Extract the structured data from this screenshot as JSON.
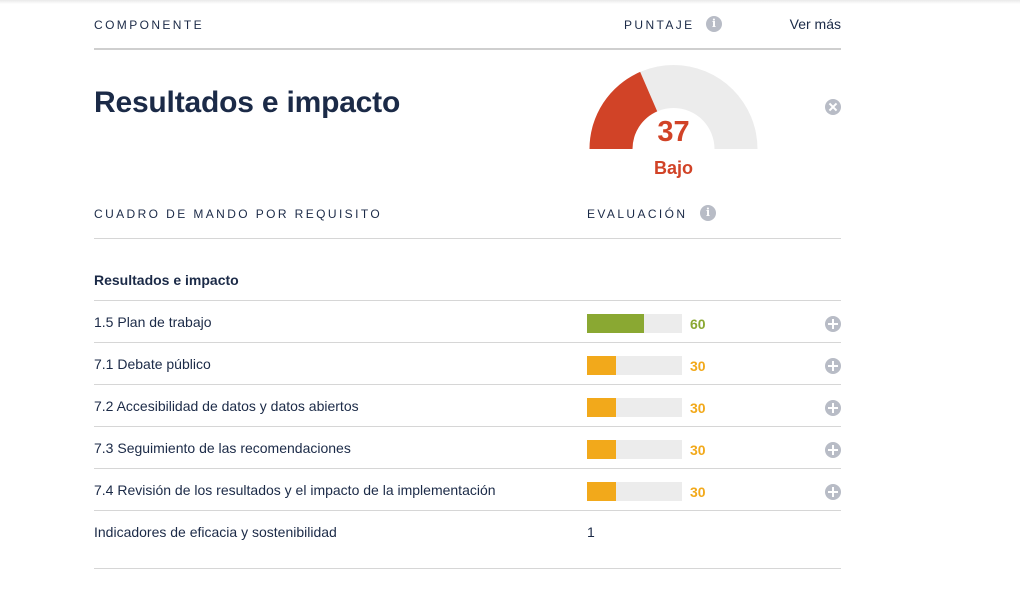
{
  "header": {
    "component_label": "COMPONENTE",
    "score_label": "PUNTAJE",
    "score_info_icon": "info-icon",
    "more_link": "Ver más"
  },
  "component": {
    "title": "Resultados e impacto",
    "score": "37",
    "score_value": 37,
    "score_max": 100,
    "rating": "Bajo",
    "accent_color": "#d14327",
    "close_icon": "close-icon"
  },
  "scorecard": {
    "label": "CUADRO DE MANDO POR REQUISITO",
    "evaluation_label": "EVALUACIÓN",
    "group_title": "Resultados e impacto",
    "rows": [
      {
        "label": "1.5 Plan de trabajo",
        "value": "60",
        "percent": 60,
        "color": "#8aa832"
      },
      {
        "label": "7.1 Debate público",
        "value": "30",
        "percent": 30,
        "color": "#f2a91b"
      },
      {
        "label": "7.2 Accesibilidad de datos y datos abiertos",
        "value": "30",
        "percent": 30,
        "color": "#f2a91b"
      },
      {
        "label": "7.3 Seguimiento de las recomendaciones",
        "value": "30",
        "percent": 30,
        "color": "#f2a91b"
      },
      {
        "label": "7.4 Revisión de los resultados y el impacto de la implementación",
        "value": "30",
        "percent": 30,
        "color": "#f2a91b"
      }
    ],
    "indicator": {
      "label": "Indicadores de eficacia y sostenibilidad",
      "value": "1"
    }
  }
}
